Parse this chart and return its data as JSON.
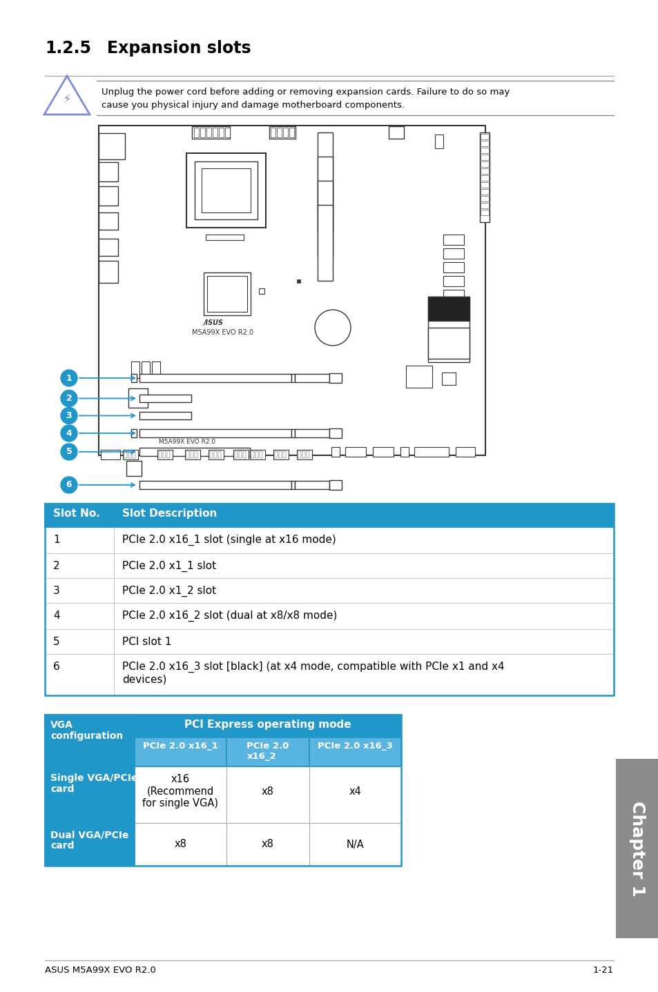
{
  "title_num": "1.2.5",
  "title_text": "Expansion slots",
  "warning_text_line1": "Unplug the power cord before adding or removing expansion cards. Failure to do so may",
  "warning_text_line2": "cause you physical injury and damage motherboard components.",
  "table1_header": [
    "Slot No.",
    "Slot Description"
  ],
  "table1_header_bg": "#2196c8",
  "table1_header_color": "#ffffff",
  "table1_rows": [
    [
      "1",
      "PCIe 2.0 x16_1 slot (single at x16 mode)"
    ],
    [
      "2",
      "PCIe 2.0 x1_1 slot"
    ],
    [
      "3",
      "PCIe 2.0 x1_2 slot"
    ],
    [
      "4",
      "PCIe 2.0 x16_2 slot (dual at x8/x8 mode)"
    ],
    [
      "5",
      "PCI slot 1"
    ],
    [
      "6",
      "PCIe 2.0 x16_3 slot [black] (at x4 mode, compatible with PCIe x1 and x4\ndevices)"
    ]
  ],
  "table1_row_bg": "#ffffff",
  "table1_border": "#2196c8",
  "table1_divider": "#cccccc",
  "table2_header_top": "PCI Express operating mode",
  "table2_col2_header": "PCIe 2.0 x16_1",
  "table2_col3_header": "PCIe 2.0\nx16_2",
  "table2_col4_header": "PCIe 2.0 x16_3",
  "table2_row1_label": "Single VGA/PCIe\ncard",
  "table2_row1_vals": [
    "x16\n(Recommend\nfor single VGA)",
    "x8",
    "x4"
  ],
  "table2_row2_label": "Dual VGA/PCIe\ncard",
  "table2_row2_vals": [
    "x8",
    "x8",
    "N/A"
  ],
  "table2_header_bg": "#2196c8",
  "table2_subheader_bg": "#5ab4e0",
  "table2_border": "#2196c8",
  "footer_left": "ASUS M5A99X EVO R2.0",
  "footer_right": "1-21",
  "chapter_label": "Chapter 1",
  "chapter_bg": "#8c8c8c",
  "page_bg": "#ffffff",
  "slot_numbers": [
    "1",
    "2",
    "3",
    "4",
    "5",
    "6"
  ],
  "slot_color": "#2196c8",
  "line_color": "#aaaaaa",
  "border_color": "#333333",
  "warning_line_color": "#999999"
}
